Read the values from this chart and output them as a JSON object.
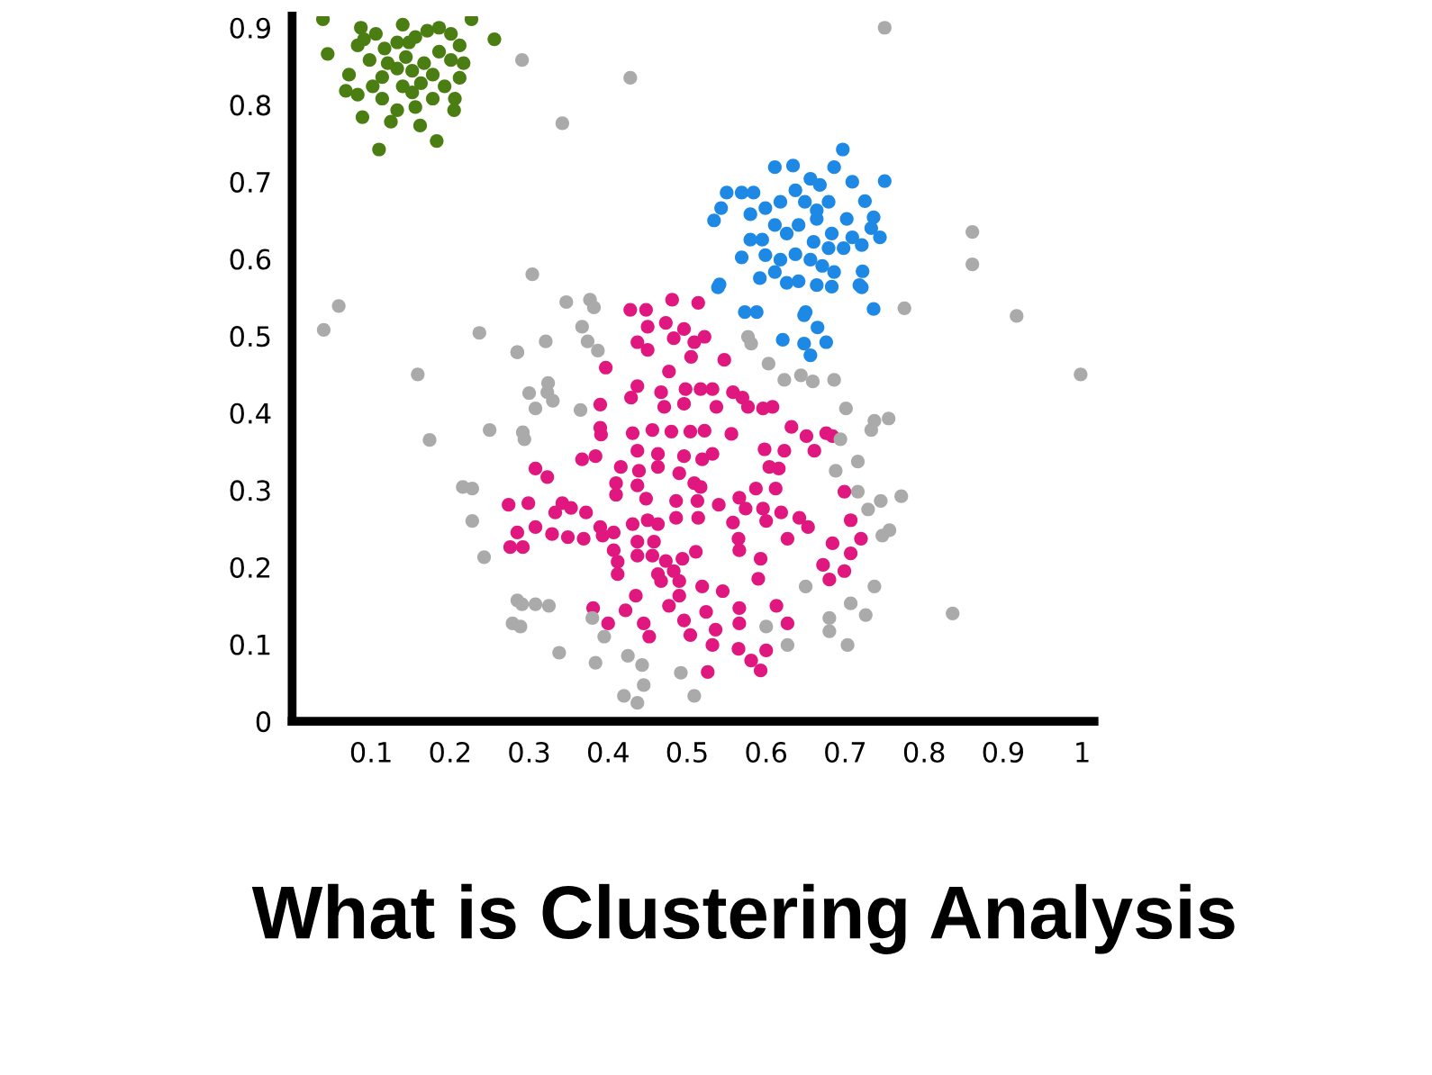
{
  "chart_data": {
    "type": "scatter",
    "title": "What is Clustering Analysis",
    "xlim": [
      0,
      1.015
    ],
    "ylim": [
      0,
      0.915
    ],
    "xticks": [
      0.1,
      0.2,
      0.3,
      0.4,
      0.5,
      0.6,
      0.7,
      0.8,
      0.9,
      1
    ],
    "yticks": [
      0,
      0.1,
      0.2,
      0.3,
      0.4,
      0.5,
      0.6,
      0.7,
      0.8,
      0.9
    ],
    "grid": false,
    "legend": false,
    "marker": "circle",
    "series": [
      {
        "color": "#4a7d12",
        "x": [
          0.039,
          0.045,
          0.072,
          0.068,
          0.083,
          0.089,
          0.11,
          0.125,
          0.133,
          0.156,
          0.162,
          0.183,
          0.205,
          0.206,
          0.217,
          0.227,
          0.256,
          0.083,
          0.087,
          0.106,
          0.117,
          0.14,
          0.156,
          0.171,
          0.186,
          0.201,
          0.212,
          0.144,
          0.133,
          0.114,
          0.102,
          0.152,
          0.167,
          0.178,
          0.193,
          0.201,
          0.186,
          0.163,
          0.14,
          0.121,
          0.098,
          0.091,
          0.148,
          0.133,
          0.178,
          0.152,
          0.212,
          0.114
        ],
        "values": [
          0.911,
          0.866,
          0.839,
          0.818,
          0.813,
          0.784,
          0.742,
          0.778,
          0.793,
          0.797,
          0.773,
          0.753,
          0.793,
          0.808,
          0.854,
          0.911,
          0.885,
          0.877,
          0.9,
          0.892,
          0.873,
          0.904,
          0.888,
          0.896,
          0.9,
          0.892,
          0.877,
          0.862,
          0.847,
          0.836,
          0.824,
          0.844,
          0.854,
          0.839,
          0.824,
          0.858,
          0.869,
          0.828,
          0.824,
          0.854,
          0.858,
          0.885,
          0.881,
          0.881,
          0.808,
          0.816,
          0.835,
          0.808
        ]
      },
      {
        "color": "#1e88e5",
        "x": [
          0.697,
          0.75,
          0.686,
          0.634,
          0.611,
          0.55,
          0.569,
          0.584,
          0.543,
          0.534,
          0.58,
          0.599,
          0.618,
          0.637,
          0.656,
          0.668,
          0.709,
          0.725,
          0.736,
          0.744,
          0.733,
          0.709,
          0.698,
          0.683,
          0.664,
          0.641,
          0.626,
          0.611,
          0.595,
          0.58,
          0.569,
          0.599,
          0.618,
          0.637,
          0.656,
          0.671,
          0.686,
          0.722,
          0.718,
          0.683,
          0.664,
          0.641,
          0.626,
          0.611,
          0.592,
          0.541,
          0.664,
          0.649,
          0.679,
          0.702,
          0.721,
          0.679,
          0.66,
          0.736,
          0.65,
          0.573,
          0.588,
          0.621,
          0.648,
          0.676,
          0.665,
          0.656,
          0.648,
          0.721,
          0.539
        ],
        "values": [
          0.742,
          0.701,
          0.719,
          0.721,
          0.719,
          0.686,
          0.686,
          0.686,
          0.666,
          0.65,
          0.658,
          0.666,
          0.674,
          0.689,
          0.704,
          0.696,
          0.7,
          0.675,
          0.654,
          0.628,
          0.64,
          0.628,
          0.614,
          0.633,
          0.652,
          0.644,
          0.633,
          0.644,
          0.625,
          0.625,
          0.602,
          0.605,
          0.599,
          0.606,
          0.599,
          0.591,
          0.583,
          0.584,
          0.566,
          0.564,
          0.566,
          0.571,
          0.569,
          0.583,
          0.575,
          0.567,
          0.663,
          0.674,
          0.674,
          0.652,
          0.618,
          0.614,
          0.622,
          0.535,
          0.531,
          0.531,
          0.531,
          0.495,
          0.49,
          0.492,
          0.511,
          0.475,
          0.527,
          0.563,
          0.563
        ]
      },
      {
        "color": "#e0177f",
        "x": [
          0.428,
          0.448,
          0.481,
          0.514,
          0.45,
          0.473,
          0.496,
          0.522,
          0.437,
          0.483,
          0.509,
          0.45,
          0.505,
          0.547,
          0.397,
          0.477,
          0.437,
          0.429,
          0.467,
          0.498,
          0.517,
          0.532,
          0.558,
          0.57,
          0.39,
          0.471,
          0.496,
          0.537,
          0.577,
          0.596,
          0.608,
          0.39,
          0.391,
          0.431,
          0.456,
          0.48,
          0.504,
          0.522,
          0.556,
          0.598,
          0.623,
          0.632,
          0.651,
          0.676,
          0.684,
          0.661,
          0.367,
          0.384,
          0.437,
          0.463,
          0.496,
          0.519,
          0.532,
          0.308,
          0.323,
          0.416,
          0.439,
          0.463,
          0.49,
          0.604,
          0.616,
          0.41,
          0.437,
          0.509,
          0.517,
          0.587,
          0.612,
          0.699,
          0.41,
          0.448,
          0.486,
          0.513,
          0.566,
          0.274,
          0.299,
          0.342,
          0.333,
          0.353,
          0.372,
          0.574,
          0.596,
          0.619,
          0.54,
          0.308,
          0.329,
          0.285,
          0.349,
          0.369,
          0.39,
          0.407,
          0.431,
          0.45,
          0.463,
          0.486,
          0.514,
          0.558,
          0.6,
          0.627,
          0.642,
          0.653,
          0.707,
          0.276,
          0.292,
          0.393,
          0.407,
          0.437,
          0.458,
          0.565,
          0.72,
          0.684,
          0.412,
          0.412,
          0.437,
          0.456,
          0.473,
          0.494,
          0.511,
          0.463,
          0.483,
          0.467,
          0.49,
          0.566,
          0.593,
          0.707,
          0.672,
          0.68,
          0.699,
          0.59,
          0.519,
          0.545,
          0.435,
          0.49,
          0.566,
          0.613,
          0.627,
          0.381,
          0.422,
          0.4,
          0.445,
          0.496,
          0.524,
          0.536,
          0.566,
          0.452,
          0.504,
          0.532,
          0.565,
          0.581,
          0.593,
          0.6,
          0.526,
          0.477
        ],
        "values": [
          0.534,
          0.534,
          0.547,
          0.543,
          0.512,
          0.517,
          0.509,
          0.499,
          0.492,
          0.497,
          0.492,
          0.482,
          0.473,
          0.469,
          0.459,
          0.454,
          0.435,
          0.42,
          0.427,
          0.431,
          0.431,
          0.431,
          0.427,
          0.42,
          0.411,
          0.408,
          0.412,
          0.408,
          0.408,
          0.406,
          0.408,
          0.381,
          0.372,
          0.374,
          0.378,
          0.376,
          0.376,
          0.377,
          0.373,
          0.353,
          0.351,
          0.382,
          0.37,
          0.374,
          0.37,
          0.351,
          0.34,
          0.344,
          0.351,
          0.347,
          0.344,
          0.34,
          0.347,
          0.328,
          0.317,
          0.33,
          0.325,
          0.33,
          0.322,
          0.33,
          0.328,
          0.309,
          0.306,
          0.309,
          0.304,
          0.302,
          0.302,
          0.298,
          0.294,
          0.289,
          0.286,
          0.286,
          0.29,
          0.281,
          0.283,
          0.283,
          0.271,
          0.277,
          0.271,
          0.276,
          0.276,
          0.271,
          0.281,
          0.252,
          0.243,
          0.245,
          0.239,
          0.237,
          0.252,
          0.245,
          0.256,
          0.261,
          0.256,
          0.264,
          0.264,
          0.258,
          0.26,
          0.237,
          0.264,
          0.252,
          0.261,
          0.226,
          0.226,
          0.241,
          0.222,
          0.233,
          0.233,
          0.237,
          0.237,
          0.231,
          0.207,
          0.191,
          0.215,
          0.215,
          0.208,
          0.211,
          0.22,
          0.191,
          0.195,
          0.182,
          0.182,
          0.222,
          0.211,
          0.218,
          0.203,
          0.184,
          0.195,
          0.185,
          0.175,
          0.169,
          0.163,
          0.163,
          0.147,
          0.15,
          0.127,
          0.147,
          0.144,
          0.127,
          0.127,
          0.131,
          0.142,
          0.119,
          0.127,
          0.11,
          0.112,
          0.099,
          0.094,
          0.079,
          0.066,
          0.092,
          0.064,
          0.15
        ]
      },
      {
        "color": "#aaaaaa",
        "x": [
          0.75,
          0.291,
          0.428,
          0.342,
          0.861,
          0.861,
          0.775,
          0.917,
          0.304,
          0.059,
          0.04,
          0.237,
          0.285,
          0.321,
          0.347,
          0.367,
          0.377,
          0.382,
          0.374,
          0.387,
          0.577,
          0.581,
          0.998,
          0.159,
          0.174,
          0.25,
          0.216,
          0.228,
          0.228,
          0.243,
          0.285,
          0.3,
          0.308,
          0.323,
          0.324,
          0.33,
          0.292,
          0.294,
          0.365,
          0.603,
          0.623,
          0.644,
          0.659,
          0.686,
          0.701,
          0.694,
          0.688,
          0.716,
          0.737,
          0.755,
          0.733,
          0.716,
          0.729,
          0.745,
          0.771,
          0.747,
          0.756,
          0.737,
          0.65,
          0.707,
          0.726,
          0.68,
          0.68,
          0.627,
          0.703,
          0.836,
          0.285,
          0.291,
          0.308,
          0.325,
          0.279,
          0.289,
          0.338,
          0.384,
          0.395,
          0.38,
          0.425,
          0.443,
          0.445,
          0.42,
          0.437,
          0.492,
          0.509,
          0.6
        ],
        "values": [
          0.9,
          0.858,
          0.835,
          0.776,
          0.635,
          0.593,
          0.536,
          0.526,
          0.58,
          0.539,
          0.508,
          0.504,
          0.479,
          0.493,
          0.544,
          0.512,
          0.547,
          0.537,
          0.493,
          0.481,
          0.499,
          0.49,
          0.45,
          0.45,
          0.365,
          0.378,
          0.304,
          0.302,
          0.26,
          0.213,
          0.479,
          0.426,
          0.406,
          0.427,
          0.439,
          0.416,
          0.375,
          0.366,
          0.404,
          0.464,
          0.443,
          0.449,
          0.441,
          0.443,
          0.406,
          0.366,
          0.325,
          0.337,
          0.39,
          0.393,
          0.378,
          0.298,
          0.275,
          0.286,
          0.292,
          0.241,
          0.248,
          0.175,
          0.175,
          0.153,
          0.138,
          0.134,
          0.117,
          0.099,
          0.099,
          0.14,
          0.157,
          0.152,
          0.152,
          0.15,
          0.127,
          0.123,
          0.089,
          0.076,
          0.11,
          0.134,
          0.085,
          0.073,
          0.047,
          0.033,
          0.024,
          0.063,
          0.033,
          0.123
        ]
      }
    ]
  }
}
